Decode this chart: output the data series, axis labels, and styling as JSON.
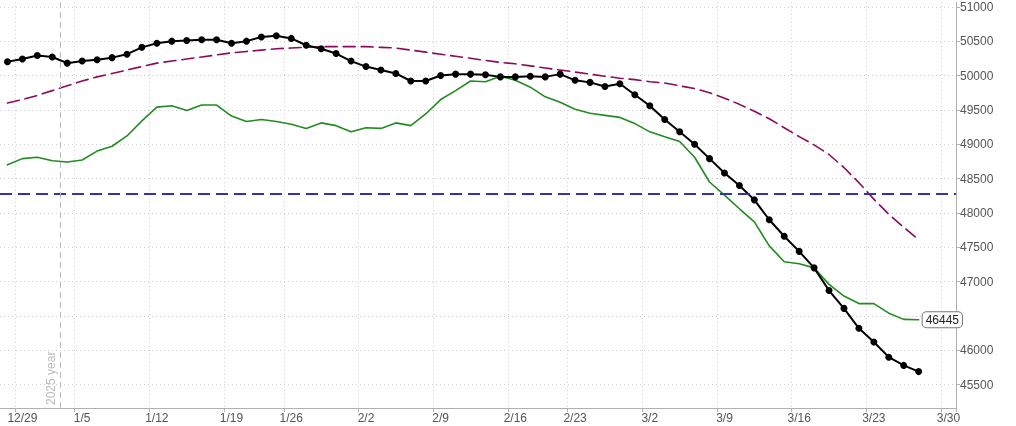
{
  "chart_data": {
    "type": "line",
    "categories": [
      null,
      "12/29",
      null,
      null,
      null,
      "1/5",
      null,
      null,
      null,
      null,
      "1/12",
      null,
      null,
      null,
      null,
      "1/19",
      null,
      null,
      null,
      "1/26",
      null,
      null,
      null,
      null,
      "2/2",
      null,
      null,
      null,
      null,
      "2/9",
      null,
      null,
      null,
      null,
      "2/16",
      null,
      null,
      null,
      "2/23",
      null,
      null,
      null,
      null,
      "3/2",
      null,
      null,
      null,
      null,
      "3/9",
      null,
      null,
      null,
      null,
      "3/16",
      null,
      null,
      null,
      null,
      "3/23",
      null,
      null,
      null,
      null,
      "3/30"
    ],
    "series": [
      {
        "color": "#228b22",
        "values": [
          48700,
          48790,
          48810,
          48760,
          48740,
          48770,
          48900,
          48970,
          49120,
          49340,
          49540,
          49560,
          49490,
          49570,
          49570,
          49410,
          49330,
          49360,
          49330,
          49290,
          49230,
          49310,
          49270,
          49180,
          49240,
          49230,
          49310,
          49270,
          49440,
          49650,
          49780,
          49920,
          49910,
          49990,
          49930,
          49830,
          49690,
          49610,
          49510,
          49450,
          49420,
          49390,
          49300,
          49180,
          49110,
          49040,
          48810,
          48450,
          48260,
          48060,
          47870,
          47520,
          47290,
          47260,
          47200,
          46960,
          46790,
          46680,
          46680,
          46540,
          46450,
          46445,
          null,
          null
        ],
        "value_labels": [
          null,
          null,
          null,
          null,
          null,
          null,
          null,
          null,
          null,
          null,
          null,
          null,
          null,
          null,
          null,
          null,
          null,
          null,
          null,
          null,
          null,
          null,
          null,
          null,
          null,
          null,
          null,
          null,
          null,
          null,
          null,
          null,
          null,
          null,
          null,
          null,
          null,
          null,
          null,
          null,
          null,
          null,
          null,
          null,
          null,
          null,
          null,
          null,
          null,
          null,
          null,
          null,
          null,
          null,
          null,
          null,
          null,
          null,
          null,
          null,
          null,
          "46445",
          null,
          null
        ]
      },
      {
        "color": "#8b0a5a",
        "line_style": "dashed",
        "values": [
          49600,
          49650,
          49710,
          49780,
          49850,
          49920,
          49980,
          50030,
          50080,
          50130,
          50180,
          50210,
          50240,
          50270,
          50300,
          50330,
          50350,
          50370,
          50390,
          50400,
          50410,
          50420,
          50420,
          50420,
          50420,
          50410,
          50400,
          50370,
          50340,
          50310,
          50280,
          50250,
          50220,
          50190,
          50170,
          50140,
          50110,
          50080,
          50050,
          50020,
          49990,
          49960,
          49940,
          49910,
          49890,
          49850,
          49810,
          49750,
          49670,
          49580,
          49480,
          49370,
          49240,
          49110,
          48990,
          48850,
          48660,
          48440,
          48200,
          47980,
          47790,
          47610,
          null,
          null
        ]
      },
      {
        "color": "#000000",
        "marker": "circle",
        "values": [
          50200,
          50240,
          50290,
          50270,
          50180,
          50210,
          50230,
          50260,
          50310,
          50410,
          50470,
          50500,
          50510,
          50520,
          50520,
          50470,
          50500,
          50560,
          50580,
          50540,
          50440,
          50390,
          50320,
          50210,
          50130,
          50080,
          50030,
          49920,
          49920,
          50000,
          50020,
          50020,
          50010,
          49980,
          49980,
          49990,
          49980,
          50020,
          49930,
          49900,
          49840,
          49880,
          49720,
          49560,
          49360,
          49180,
          49000,
          48790,
          48580,
          48400,
          48190,
          47900,
          47660,
          47440,
          47200,
          46870,
          46610,
          46320,
          46120,
          45900,
          45780,
          45690,
          null,
          null
        ]
      }
    ],
    "ylim": [
      45160,
      51070
    ],
    "yticks": [
      45500,
      46000,
      {
        "value": 46500,
        "label": null
      },
      47000,
      47500,
      48000,
      48500,
      49000,
      49500,
      50000,
      50500,
      51000
    ],
    "ref_lines": [
      {
        "axis": "y",
        "value": 48280,
        "color": "#3333aa",
        "line_style": "dashed"
      }
    ],
    "annotations": [
      "2025 year"
    ],
    "grid": true
  }
}
